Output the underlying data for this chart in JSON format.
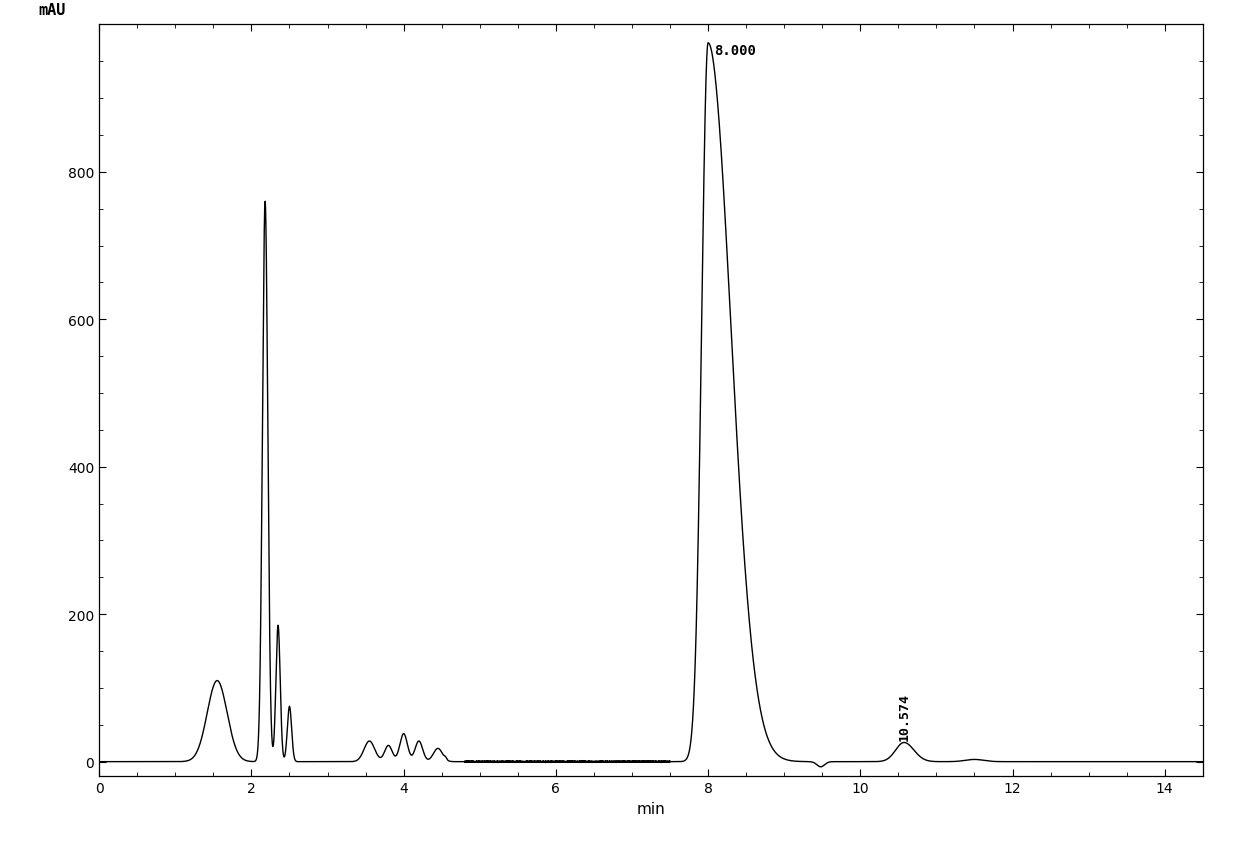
{
  "ylabel": "mAU",
  "xlabel": "min",
  "xlim": [
    0,
    14.5
  ],
  "ylim": [
    -20,
    1000
  ],
  "yticks": [
    0,
    200,
    400,
    600,
    800
  ],
  "xticks": [
    0,
    2,
    4,
    6,
    8,
    10,
    12,
    14
  ],
  "peak1_label": "8.000",
  "peak2_label": "10.574",
  "background_color": "#ffffff",
  "line_color": "#000000",
  "line_width": 1.0,
  "peaks": [
    {
      "mu": 1.55,
      "sigma_l": 0.13,
      "sigma_r": 0.13,
      "amp": 110
    },
    {
      "mu": 2.18,
      "sigma_l": 0.035,
      "sigma_r": 0.035,
      "amp": 760
    },
    {
      "mu": 2.35,
      "sigma_l": 0.028,
      "sigma_r": 0.028,
      "amp": 185
    },
    {
      "mu": 2.5,
      "sigma_l": 0.028,
      "sigma_r": 0.028,
      "amp": 75
    },
    {
      "mu": 3.55,
      "sigma_l": 0.07,
      "sigma_r": 0.07,
      "amp": 28
    },
    {
      "mu": 3.8,
      "sigma_l": 0.05,
      "sigma_r": 0.05,
      "amp": 22
    },
    {
      "mu": 4.0,
      "sigma_l": 0.05,
      "sigma_r": 0.05,
      "amp": 38
    },
    {
      "mu": 4.2,
      "sigma_l": 0.05,
      "sigma_r": 0.05,
      "amp": 28
    },
    {
      "mu": 4.45,
      "sigma_l": 0.06,
      "sigma_r": 0.06,
      "amp": 18
    },
    {
      "mu": 8.0,
      "sigma_l": 0.085,
      "sigma_r": 0.3,
      "amp": 975
    },
    {
      "mu": 10.574,
      "sigma_l": 0.11,
      "sigma_r": 0.13,
      "amp": 26
    },
    {
      "mu": 11.5,
      "sigma_l": 0.12,
      "sigma_r": 0.12,
      "amp": 3
    }
  ],
  "neg_dip": {
    "mu": 9.48,
    "sigma": 0.05,
    "amp": -7
  }
}
